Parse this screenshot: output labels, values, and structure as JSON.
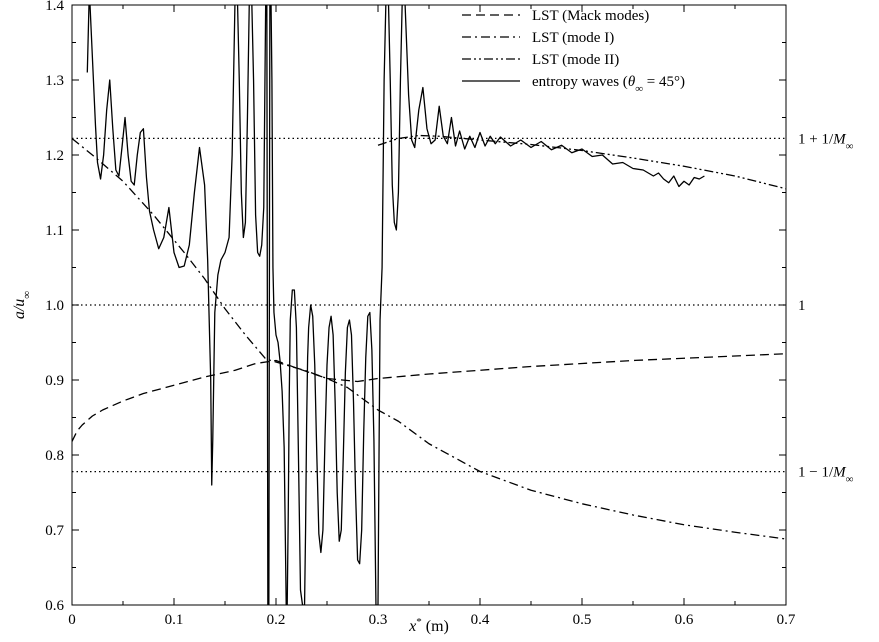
{
  "chart_data": {
    "type": "line",
    "title": "",
    "xlabel": {
      "main": "x",
      "sup": "*",
      "rest": " (m)"
    },
    "ylabel": {
      "main": "a/u",
      "sub": "∞"
    },
    "xlim": [
      0,
      0.7
    ],
    "ylim": [
      0.6,
      1.4
    ],
    "x_ticks": [
      0,
      0.1,
      0.2,
      0.3,
      0.4,
      0.5,
      0.6,
      0.7
    ],
    "x_tick_labels": [
      "0",
      "0.1",
      "0.2",
      "0.3",
      "0.4",
      "0.5",
      "0.6",
      "0.7"
    ],
    "y_ticks": [
      0.6,
      0.7,
      0.8,
      0.9,
      1.0,
      1.1,
      1.2,
      1.3,
      1.4
    ],
    "y_tick_labels": [
      "0.6",
      "0.7",
      "0.8",
      "0.9",
      "1.0",
      "1.1",
      "1.2",
      "1.3",
      "1.4"
    ],
    "grid": false,
    "legend_position": "top-right",
    "reference_lines": [
      {
        "y": 1.2222,
        "label": {
          "pre": "1 + 1/",
          "main": "M",
          "sub": "∞"
        }
      },
      {
        "y": 1.0,
        "label": {
          "pre": "1",
          "main": "",
          "sub": ""
        }
      },
      {
        "y": 0.7778,
        "label": {
          "pre": "1 − 1/",
          "main": "M",
          "sub": "∞"
        }
      }
    ],
    "series": [
      {
        "name": "LST (Mack modes)",
        "style": "dashed",
        "x": [
          0.0,
          0.005,
          0.01,
          0.02,
          0.03,
          0.05,
          0.07,
          0.1,
          0.13,
          0.16,
          0.18,
          0.2,
          0.22,
          0.25,
          0.28,
          0.3,
          0.35,
          0.4,
          0.45,
          0.5,
          0.55,
          0.6,
          0.65,
          0.7
        ],
        "y": [
          0.818,
          0.832,
          0.84,
          0.852,
          0.86,
          0.872,
          0.882,
          0.893,
          0.904,
          0.913,
          0.922,
          0.926,
          0.916,
          0.902,
          0.898,
          0.902,
          0.908,
          0.913,
          0.918,
          0.922,
          0.926,
          0.929,
          0.932,
          0.935
        ]
      },
      {
        "name": "LST (mode I)",
        "style": "dashdot",
        "x": [
          0.0,
          0.02,
          0.05,
          0.08,
          0.11,
          0.13,
          0.15,
          0.17,
          0.19,
          0.21,
          0.23,
          0.25,
          0.27,
          0.29,
          0.3,
          0.32,
          0.35,
          0.4,
          0.45,
          0.5,
          0.55,
          0.6,
          0.65,
          0.7
        ],
        "y": [
          1.222,
          1.2,
          1.165,
          1.12,
          1.07,
          1.035,
          0.995,
          0.96,
          0.928,
          0.92,
          0.912,
          0.902,
          0.89,
          0.87,
          0.86,
          0.845,
          0.815,
          0.778,
          0.753,
          0.735,
          0.72,
          0.707,
          0.697,
          0.688
        ]
      },
      {
        "name": "LST (mode II)",
        "style": "dashdotdot",
        "x": [
          0.3,
          0.32,
          0.34,
          0.36,
          0.4,
          0.45,
          0.5,
          0.55,
          0.6,
          0.65,
          0.7
        ],
        "y": [
          1.213,
          1.222,
          1.226,
          1.225,
          1.22,
          1.214,
          1.206,
          1.196,
          1.185,
          1.172,
          1.155
        ]
      },
      {
        "name": "entropy waves (θ∞ = 45°)",
        "name_parts": {
          "pre": "entropy waves (",
          "main": "θ",
          "sub": "∞",
          "post": " = 45°)"
        },
        "style": "solid",
        "x": [
          0.015,
          0.017,
          0.019,
          0.021,
          0.023,
          0.025,
          0.028,
          0.031,
          0.034,
          0.037,
          0.04,
          0.043,
          0.046,
          0.049,
          0.052,
          0.055,
          0.058,
          0.061,
          0.064,
          0.067,
          0.07,
          0.073,
          0.076,
          0.08,
          0.085,
          0.09,
          0.095,
          0.1,
          0.105,
          0.11,
          0.115,
          0.12,
          0.125,
          0.13,
          0.133,
          0.136,
          0.137,
          0.138,
          0.14,
          0.143,
          0.146,
          0.15,
          0.154,
          0.157,
          0.16,
          0.162,
          0.164,
          0.166,
          0.168,
          0.17,
          0.172,
          0.174,
          0.176,
          0.178,
          0.18,
          0.182,
          0.184,
          0.186,
          0.188,
          0.19,
          0.191,
          0.192,
          0.193,
          0.194,
          0.195,
          0.196,
          0.197,
          0.198,
          0.2,
          0.202,
          0.204,
          0.206,
          0.208,
          0.21,
          0.211,
          0.212,
          0.213,
          0.214,
          0.216,
          0.218,
          0.22,
          0.222,
          0.224,
          0.226,
          0.228,
          0.229,
          0.23,
          0.231,
          0.232,
          0.234,
          0.236,
          0.238,
          0.24,
          0.242,
          0.244,
          0.246,
          0.248,
          0.25,
          0.252,
          0.254,
          0.256,
          0.258,
          0.26,
          0.262,
          0.264,
          0.266,
          0.268,
          0.27,
          0.272,
          0.274,
          0.276,
          0.278,
          0.28,
          0.282,
          0.284,
          0.286,
          0.288,
          0.29,
          0.292,
          0.294,
          0.296,
          0.298,
          0.299,
          0.3,
          0.301,
          0.302,
          0.304,
          0.306,
          0.308,
          0.31,
          0.312,
          0.314,
          0.316,
          0.318,
          0.32,
          0.322,
          0.324,
          0.326,
          0.328,
          0.33,
          0.333,
          0.336,
          0.34,
          0.344,
          0.348,
          0.352,
          0.356,
          0.36,
          0.364,
          0.368,
          0.372,
          0.376,
          0.38,
          0.385,
          0.39,
          0.395,
          0.4,
          0.405,
          0.41,
          0.415,
          0.42,
          0.43,
          0.44,
          0.45,
          0.46,
          0.47,
          0.48,
          0.49,
          0.5,
          0.51,
          0.52,
          0.53,
          0.54,
          0.55,
          0.56,
          0.57,
          0.575,
          0.58,
          0.585,
          0.59,
          0.595,
          0.6,
          0.605,
          0.61,
          0.615,
          0.62
        ],
        "y": [
          1.31,
          1.42,
          1.36,
          1.3,
          1.24,
          1.19,
          1.168,
          1.2,
          1.26,
          1.3,
          1.235,
          1.18,
          1.172,
          1.21,
          1.25,
          1.2,
          1.165,
          1.16,
          1.2,
          1.23,
          1.235,
          1.17,
          1.125,
          1.1,
          1.075,
          1.09,
          1.13,
          1.07,
          1.05,
          1.052,
          1.08,
          1.15,
          1.21,
          1.16,
          1.06,
          0.9,
          0.76,
          0.82,
          0.99,
          1.04,
          1.06,
          1.07,
          1.09,
          1.2,
          1.42,
          1.42,
          1.3,
          1.15,
          1.09,
          1.11,
          1.25,
          1.42,
          1.42,
          1.3,
          1.12,
          1.07,
          1.065,
          1.08,
          1.13,
          1.42,
          1.42,
          0.6,
          0.6,
          1.42,
          1.42,
          1.3,
          1.05,
          0.99,
          0.96,
          0.95,
          0.925,
          0.885,
          0.81,
          0.6,
          0.6,
          0.72,
          0.88,
          0.98,
          1.02,
          1.02,
          0.97,
          0.8,
          0.62,
          0.6,
          0.6,
          0.7,
          0.84,
          0.93,
          0.97,
          1.0,
          0.985,
          0.92,
          0.8,
          0.695,
          0.67,
          0.7,
          0.82,
          0.92,
          0.97,
          0.985,
          0.96,
          0.87,
          0.75,
          0.685,
          0.7,
          0.8,
          0.91,
          0.97,
          0.98,
          0.96,
          0.87,
          0.75,
          0.66,
          0.655,
          0.7,
          0.83,
          0.93,
          0.985,
          0.99,
          0.94,
          0.82,
          0.6,
          0.6,
          0.6,
          0.8,
          0.98,
          1.05,
          1.3,
          1.42,
          1.42,
          1.3,
          1.16,
          1.11,
          1.1,
          1.15,
          1.3,
          1.42,
          1.42,
          1.35,
          1.28,
          1.22,
          1.21,
          1.26,
          1.29,
          1.235,
          1.215,
          1.22,
          1.265,
          1.225,
          1.215,
          1.25,
          1.212,
          1.232,
          1.208,
          1.225,
          1.21,
          1.23,
          1.212,
          1.225,
          1.215,
          1.224,
          1.212,
          1.22,
          1.21,
          1.218,
          1.207,
          1.213,
          1.203,
          1.208,
          1.198,
          1.2,
          1.188,
          1.19,
          1.182,
          1.18,
          1.172,
          1.176,
          1.168,
          1.163,
          1.172,
          1.158,
          1.165,
          1.16,
          1.17,
          1.168,
          1.172
        ]
      }
    ]
  }
}
